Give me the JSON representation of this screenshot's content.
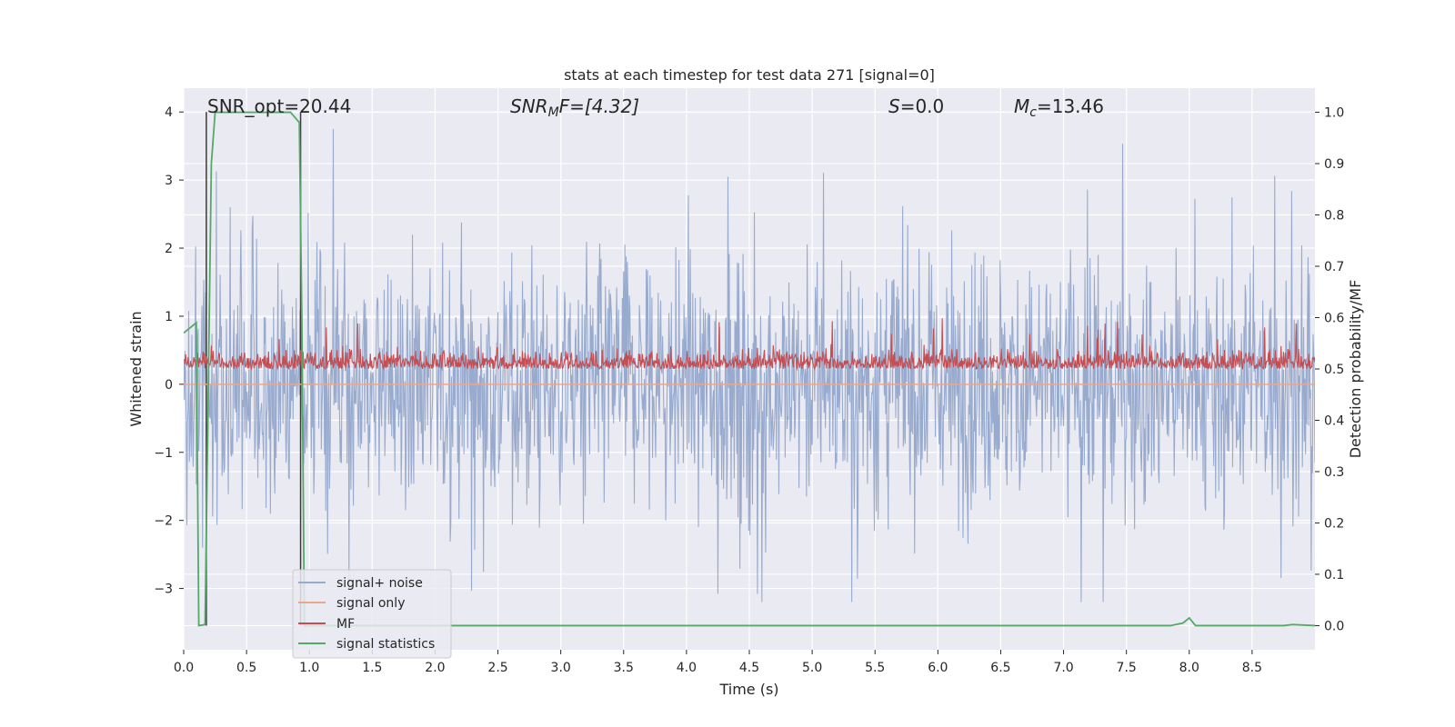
{
  "chart_data": {
    "type": "line",
    "title": "stats at each timestep for test data 271 [signal=0]",
    "xlabel": "Time (s)",
    "ylabel": "Whitened strain",
    "y2label": "Detection probability/MF",
    "xlim": [
      0,
      9
    ],
    "ylim": [
      -3.9,
      4.35
    ],
    "y2lim": [
      -0.047,
      1.047
    ],
    "xticks": [
      "0.0",
      "0.5",
      "1.0",
      "1.5",
      "2.0",
      "2.5",
      "3.0",
      "3.5",
      "4.0",
      "4.5",
      "5.0",
      "5.5",
      "6.0",
      "6.5",
      "7.0",
      "7.5",
      "8.0",
      "8.5"
    ],
    "yticks": [
      "4",
      "3",
      "2",
      "1",
      "0",
      "−1",
      "−2",
      "−3"
    ],
    "y2ticks": [
      "1.0",
      "0.9",
      "0.8",
      "0.7",
      "0.6",
      "0.5",
      "0.4",
      "0.3",
      "0.2",
      "0.1",
      "0.0"
    ],
    "grid": true,
    "legend_position": "lower-left",
    "annotations": {
      "snr_opt": "SNR_opt=20.44",
      "snr_mf_base": "SNR",
      "snr_mf_sub": "M",
      "snr_mf_rest": "F=[4.32]",
      "s_base": "S",
      "s_rest": "=0.0",
      "mc_base": "M",
      "mc_sub": "c",
      "mc_rest": "=13.46"
    },
    "series": [
      {
        "name": "signal+ noise",
        "color": "#98abcf",
        "noise_envelope": {
          "center": 0.0,
          "upper_typical": 1.8,
          "lower_typical": -1.8,
          "max": 4.0,
          "min": -3.2
        }
      },
      {
        "name": "signal only",
        "color": "#e8a88a",
        "values_constant": 0.0
      },
      {
        "name": "MF",
        "color": "#c44e52",
        "axis": "right",
        "band": {
          "base": 0.5,
          "typical_peak": 0.55,
          "max": 0.6
        }
      },
      {
        "name": "signal statistics",
        "color": "#55a868",
        "axis": "right",
        "x": [
          0.0,
          0.05,
          0.1,
          0.12,
          0.17,
          0.22,
          0.25,
          0.3,
          0.5,
          0.7,
          0.85,
          0.92,
          0.94,
          0.96,
          1.0,
          1.5,
          2.0,
          3.0,
          4.0,
          5.0,
          6.0,
          7.0,
          7.85,
          7.95,
          8.0,
          8.05,
          8.5,
          8.75,
          8.82,
          9.0
        ],
        "y": [
          0.57,
          0.58,
          0.59,
          0.0,
          0.002,
          0.9,
          1.0,
          1.0,
          1.0,
          1.0,
          1.0,
          0.98,
          0.6,
          0.0,
          0.0,
          0.0,
          0.0,
          0.0,
          0.0,
          0.0,
          0.0,
          0.0,
          0.0,
          0.005,
          0.015,
          0.0,
          0.0,
          0.0,
          0.002,
          0.0
        ]
      }
    ],
    "vlines": [
      0.18,
      0.93
    ]
  }
}
